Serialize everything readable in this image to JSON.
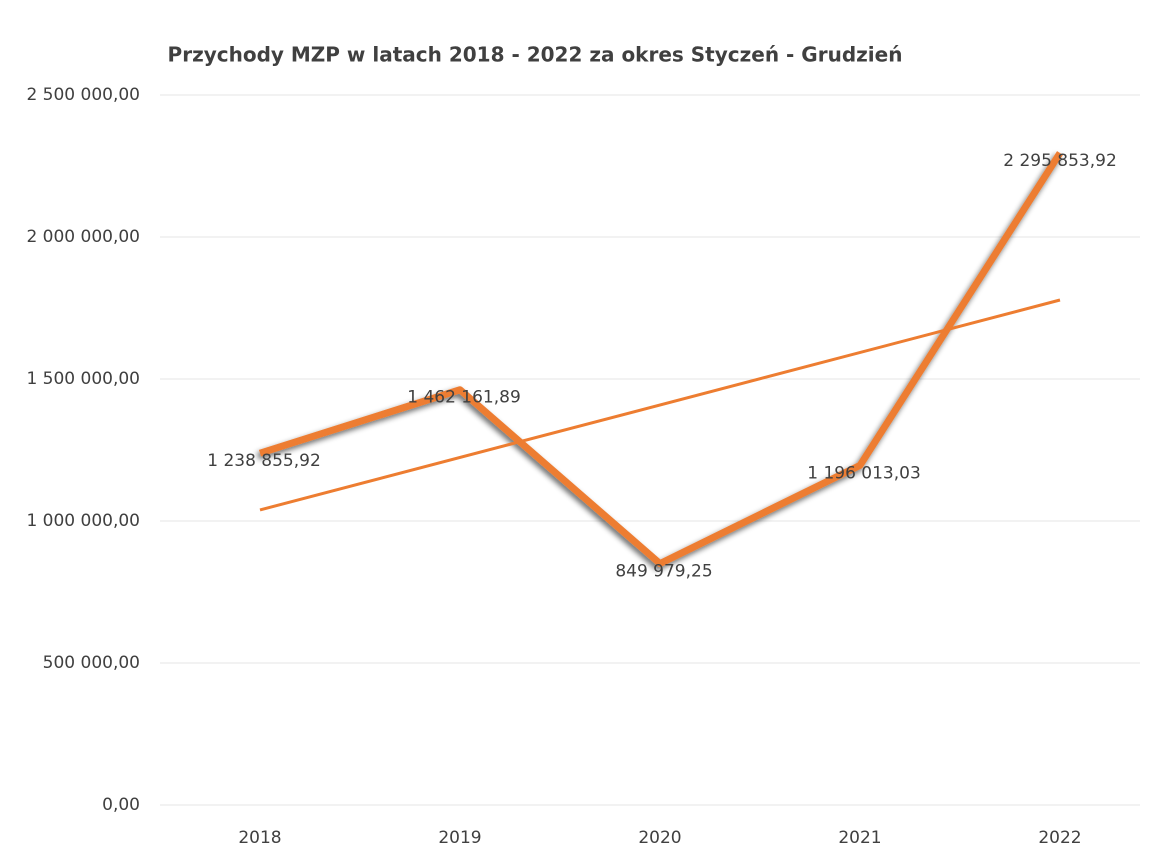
{
  "chart_data": {
    "type": "line",
    "title": "Przychody MZP w latach 2018 - 2022 za okres Styczeń - Grudzień",
    "categories": [
      "2018",
      "2019",
      "2020",
      "2021",
      "2022"
    ],
    "series": [
      {
        "name": "Przychody",
        "color": "#ed7d31",
        "values": [
          1238855.92,
          1462161.89,
          849979.25,
          1196013.03,
          2295853.92
        ],
        "value_labels": [
          "1 238 855,92",
          "1 462 161,89",
          "849 979,25",
          "1 196 013,03",
          "2 295 853,92"
        ]
      }
    ],
    "trendline": true,
    "ylim": [
      0,
      2500000
    ],
    "yticks": [
      {
        "value": 0,
        "label": "0,00"
      },
      {
        "value": 500000,
        "label": "500 000,00"
      },
      {
        "value": 1000000,
        "label": "1 000 000,00"
      },
      {
        "value": 1500000,
        "label": "1 500 000,00"
      },
      {
        "value": 2000000,
        "label": "2 000 000,00"
      },
      {
        "value": 2500000,
        "label": "2 500 000,00"
      }
    ],
    "grid": true
  }
}
